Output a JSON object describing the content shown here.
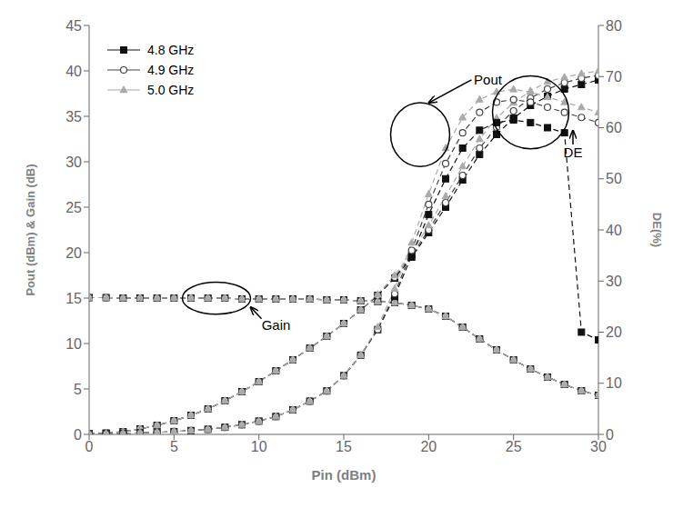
{
  "chart_data": {
    "type": "line",
    "x": [
      0,
      1,
      2,
      3,
      4,
      5,
      6,
      7,
      8,
      9,
      10,
      11,
      12,
      13,
      14,
      15,
      16,
      17,
      18,
      19,
      20,
      21,
      22,
      23,
      24,
      25,
      26,
      27,
      28,
      29,
      30
    ],
    "xlim": [
      0,
      30
    ],
    "xticks": [
      0,
      5,
      10,
      15,
      20,
      25,
      30
    ],
    "ylim": [
      0,
      45
    ],
    "yticks": [
      0,
      5,
      10,
      15,
      20,
      25,
      30,
      35,
      40,
      45
    ],
    "y2lim": [
      0,
      80
    ],
    "y2ticks": [
      0,
      10,
      20,
      30,
      40,
      50,
      60,
      70,
      80
    ],
    "xlabel": "Pin (dBm)",
    "ylabel": "Pout (dBm) & Gain (dB)",
    "y2label": "DE(%)",
    "grid": false,
    "legend": "upper left",
    "annotations": [
      {
        "text": "Pout"
      },
      {
        "text": "Gain"
      },
      {
        "text": "DE"
      }
    ],
    "series": [
      {
        "name": "4.8 GHz",
        "color": "#111111",
        "marker": "square",
        "line_style": "dashed",
        "values": [
          0.05,
          0.15,
          0.3,
          0.6,
          1.0,
          1.5,
          2.1,
          2.8,
          3.7,
          4.7,
          5.8,
          7.0,
          8.2,
          9.5,
          10.8,
          12.2,
          13.7,
          15.3,
          17.2,
          19.5,
          22.2,
          25.0,
          28.0,
          30.8,
          33.0,
          34.8,
          36.2,
          37.2,
          38.0,
          38.5,
          39.0
        ]
      },
      {
        "name": "4.9 GHz",
        "color": "#444444",
        "marker": "hollow_circle",
        "line_style": "dashed",
        "values": [
          0.05,
          0.15,
          0.3,
          0.6,
          1.0,
          1.5,
          2.1,
          2.8,
          3.7,
          4.7,
          5.8,
          7.0,
          8.2,
          9.5,
          10.8,
          12.2,
          13.7,
          15.3,
          17.3,
          19.7,
          22.5,
          25.5,
          28.5,
          31.5,
          33.8,
          35.6,
          37.0,
          38.0,
          38.7,
          39.2,
          39.5
        ]
      },
      {
        "name": "5.0 GHz",
        "color": "#aaaaaa",
        "marker": "triangle",
        "line_style": "dashed",
        "values": [
          0.05,
          0.15,
          0.3,
          0.6,
          1.0,
          1.5,
          2.1,
          2.8,
          3.7,
          4.7,
          5.8,
          7.0,
          8.2,
          9.5,
          10.8,
          12.2,
          13.7,
          15.4,
          17.5,
          20.0,
          23.0,
          26.2,
          29.5,
          32.5,
          34.8,
          36.5,
          37.8,
          38.8,
          39.3,
          39.7,
          40.0
        ]
      },
      {
        "color": "#111111",
        "marker": "square",
        "line_style": "dashed",
        "values": [
          15.05,
          15.05,
          15.0,
          15.0,
          15.0,
          15.0,
          15.0,
          15.0,
          15.0,
          14.9,
          14.9,
          14.9,
          14.9,
          14.9,
          14.8,
          14.8,
          14.7,
          14.6,
          14.5,
          14.2,
          13.8,
          13.0,
          11.8,
          10.5,
          9.3,
          8.2,
          7.2,
          6.3,
          5.5,
          4.8,
          4.3
        ]
      },
      {
        "color": "#444444",
        "marker": "hollow_circle",
        "line_style": "dashed",
        "values": [
          15.05,
          15.05,
          15.0,
          15.0,
          15.0,
          15.0,
          15.0,
          15.0,
          15.0,
          14.9,
          14.9,
          14.9,
          14.9,
          14.9,
          14.8,
          14.8,
          14.7,
          14.6,
          14.5,
          14.2,
          13.8,
          13.0,
          11.8,
          10.5,
          9.3,
          8.2,
          7.2,
          6.3,
          5.5,
          4.8,
          4.3
        ]
      },
      {
        "color": "#aaaaaa",
        "marker": "triangle",
        "line_style": "dashed",
        "values": [
          15.05,
          15.05,
          15.0,
          15.0,
          15.0,
          15.0,
          15.0,
          15.0,
          15.0,
          14.9,
          14.9,
          14.9,
          14.9,
          14.9,
          14.8,
          14.8,
          14.7,
          14.6,
          14.5,
          14.2,
          13.8,
          13.0,
          11.8,
          10.5,
          9.3,
          8.2,
          7.2,
          6.3,
          5.5,
          4.8,
          4.3
        ]
      },
      {
        "color": "#111111",
        "marker": "square",
        "line_style": "dashed",
        "axis": "y2",
        "values": [
          0.1,
          0.15,
          0.2,
          0.3,
          0.4,
          0.55,
          0.75,
          1.0,
          1.4,
          1.9,
          2.6,
          3.5,
          4.8,
          6.5,
          8.5,
          11.5,
          15.5,
          20.5,
          27.0,
          35.0,
          43.0,
          50.0,
          56.0,
          59.5,
          61.0,
          61.5,
          61.0,
          60.0,
          59.0,
          20.0,
          18.5
        ]
      },
      {
        "color": "#444444",
        "marker": "hollow_circle",
        "line_style": "dashed",
        "axis": "y2",
        "values": [
          0.1,
          0.15,
          0.2,
          0.3,
          0.4,
          0.55,
          0.75,
          1.0,
          1.4,
          1.9,
          2.6,
          3.5,
          4.8,
          6.5,
          8.5,
          11.5,
          15.5,
          20.5,
          27.5,
          36.0,
          45.0,
          53.0,
          59.0,
          63.0,
          65.0,
          65.5,
          65.0,
          64.0,
          63.0,
          62.0,
          61.0
        ]
      },
      {
        "color": "#aaaaaa",
        "marker": "triangle",
        "line_style": "dashed",
        "axis": "y2",
        "values": [
          0.1,
          0.15,
          0.2,
          0.3,
          0.4,
          0.55,
          0.75,
          1.0,
          1.4,
          1.9,
          2.6,
          3.5,
          4.8,
          6.5,
          8.5,
          11.5,
          15.5,
          21.0,
          28.5,
          37.5,
          47.0,
          56.0,
          62.0,
          65.5,
          67.0,
          67.5,
          67.0,
          66.0,
          65.0,
          64.0,
          63.0
        ]
      }
    ]
  }
}
